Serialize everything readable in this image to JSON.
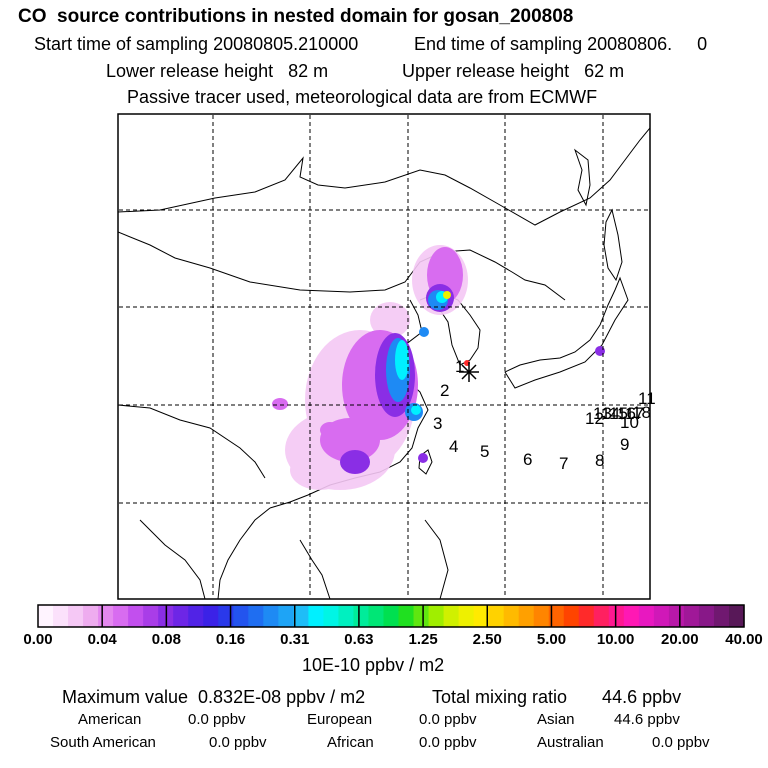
{
  "header": {
    "title": "CO  source contributions in nested domain for gosan_200808",
    "start_label": "Start time of sampling 20080805.210000",
    "end_label": "End time of sampling 20080806.     0",
    "lower_label": "Lower release height   82 m",
    "upper_label": "Upper release height   62 m",
    "note": "Passive tracer used, meteorological data are from ECMWF"
  },
  "chart_data": {
    "type": "heatmap",
    "title": "CO  source contributions in nested domain for gosan_200808",
    "grid": true,
    "colorbar": {
      "tick_labels": [
        "0.00",
        "0.04",
        "0.08",
        "0.16",
        "0.31",
        "0.63",
        "1.25",
        "2.50",
        "5.00",
        "10.00",
        "20.00",
        "40.00"
      ],
      "unit_label": "10E-10 ppbv / m2",
      "colors": [
        "#fff4ff",
        "#fbe1fb",
        "#f5c8f5",
        "#eeacef",
        "#e488ef",
        "#d86cf0",
        "#c24fee",
        "#a93de8",
        "#8a2ee5",
        "#6d26e6",
        "#5123e6",
        "#3b22e7",
        "#2a39ea",
        "#2354ee",
        "#1f6ef1",
        "#1e8af4",
        "#1ea4f6",
        "#1fbdf7",
        "#00f0ff",
        "#00f5e5",
        "#00f0c0",
        "#00ec9a",
        "#00e676",
        "#00e050",
        "#20e020",
        "#60e610",
        "#a0ee00",
        "#d0f000",
        "#eef000",
        "#ffea00",
        "#ffd200",
        "#ffba00",
        "#ffa000",
        "#ff8500",
        "#ff6400",
        "#ff4400",
        "#ff2a2a",
        "#ff2060",
        "#ff1890",
        "#ff18b4",
        "#e818c0",
        "#d018b8",
        "#b818a8",
        "#a01898",
        "#881888",
        "#701870",
        "#581858"
      ]
    },
    "trajectory_labels": [
      "1",
      "2",
      "3",
      "4",
      "5",
      "6",
      "7",
      "8",
      "9",
      "10",
      "11",
      "12",
      "13",
      "14",
      "15",
      "16",
      "17",
      "18"
    ],
    "summary": {
      "max_value": "Maximum value  0.832E-08 ppbv / m2",
      "total": "Total mixing ratio       44.6 ppbv",
      "american": "American",
      "american_val": "0.0 ppbv",
      "european": "European",
      "european_val": "0.0 ppbv",
      "asian": "Asian",
      "asian_val": "44.6 ppbv",
      "south_american": "South American",
      "south_american_val": "0.0 ppbv",
      "african": "African",
      "african_val": "0.0 ppbv",
      "australian": "Australian",
      "australian_val": "0.0 ppbv"
    }
  }
}
